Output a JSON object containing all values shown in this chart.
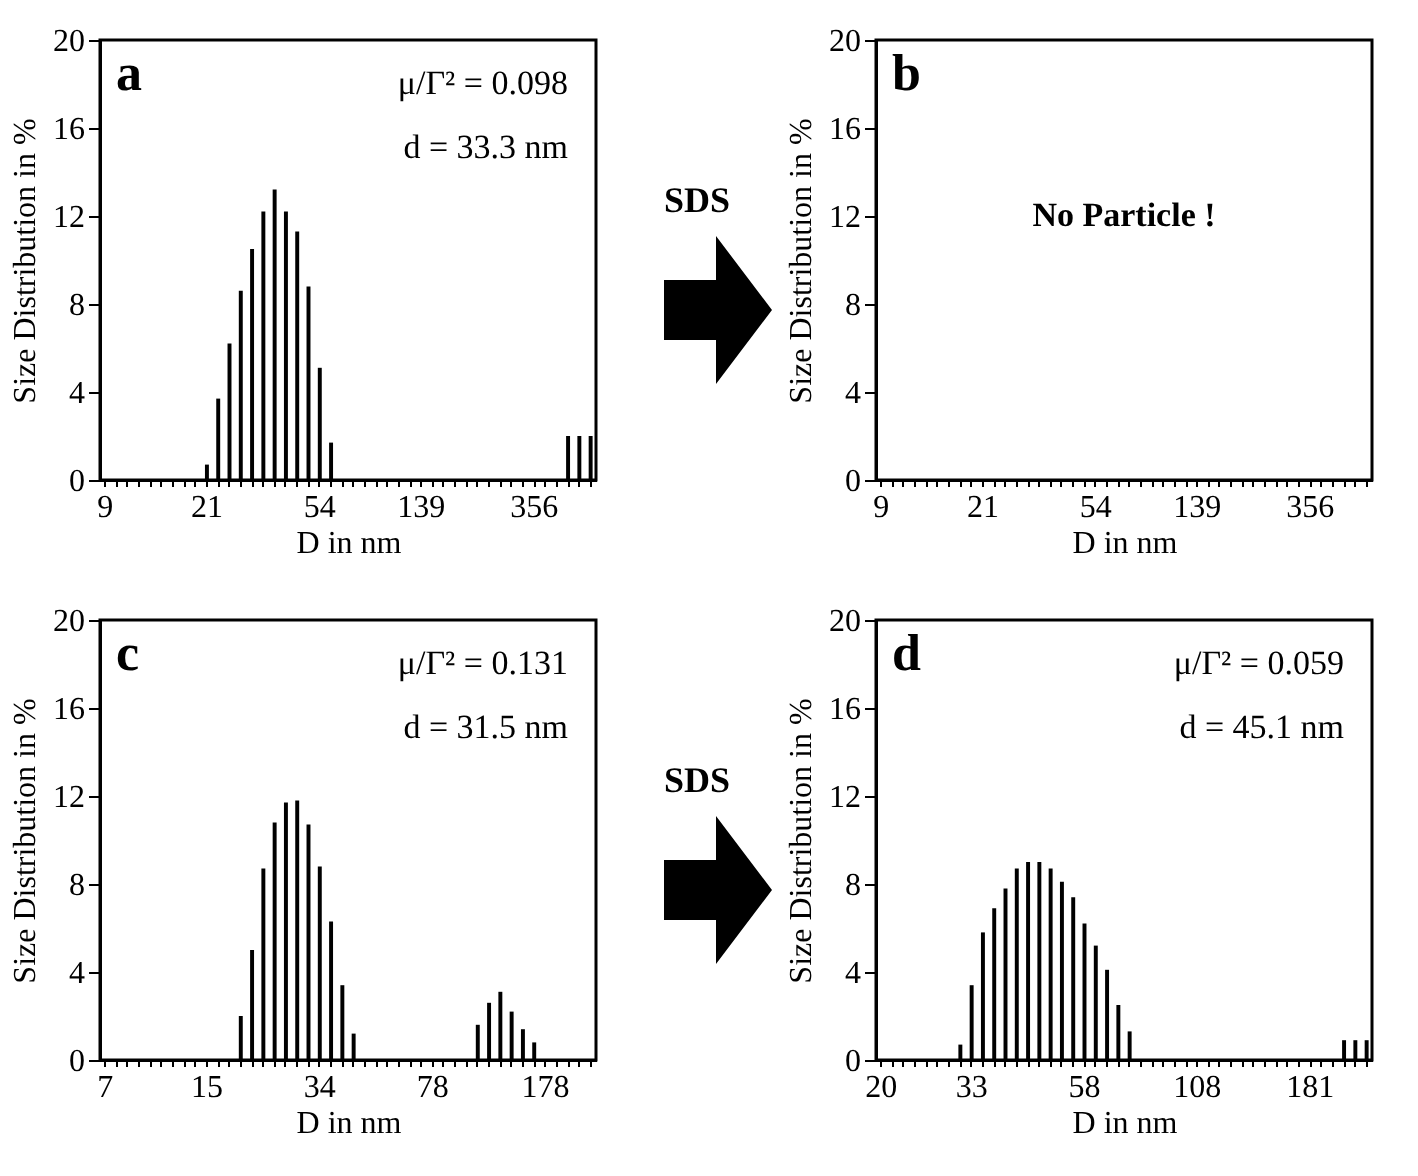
{
  "chart_data": [
    {
      "type": "bar",
      "title": "a",
      "xlabel": "D in nm",
      "ylabel": "Size Distribution in %",
      "annotations": [
        "μ/Γ² = 0.098",
        "d = 33.3 nm"
      ],
      "categories": [
        "9",
        null,
        null,
        null,
        null,
        null,
        null,
        null,
        null,
        "21",
        null,
        null,
        null,
        null,
        null,
        null,
        null,
        null,
        null,
        "54",
        null,
        null,
        null,
        null,
        null,
        null,
        null,
        null,
        "139",
        null,
        null,
        null,
        null,
        null,
        null,
        null,
        null,
        null,
        "356",
        null,
        null,
        null,
        null,
        null
      ],
      "values": [
        0,
        0,
        0,
        0,
        0,
        0,
        0,
        0,
        0,
        0.7,
        3.7,
        6.2,
        8.6,
        10.5,
        12.2,
        13.2,
        12.2,
        11.3,
        8.8,
        5.1,
        1.7,
        0,
        0,
        0,
        0,
        0,
        0,
        0,
        0,
        0,
        0,
        0,
        0,
        0,
        0,
        0,
        0,
        0,
        0,
        0,
        0,
        2.0,
        2.0,
        2.0
      ],
      "color": "#000000",
      "ylim": [
        0,
        20
      ],
      "yticks": [
        0,
        4,
        8,
        12,
        16,
        20
      ],
      "grid": false
    },
    {
      "type": "bar",
      "title": "b",
      "xlabel": "D in nm",
      "ylabel": "Size Distribution in %",
      "annotations": [
        "SDS",
        "No Particle !"
      ],
      "categories": [
        "9",
        null,
        null,
        null,
        null,
        null,
        null,
        null,
        null,
        "21",
        null,
        null,
        null,
        null,
        null,
        null,
        null,
        null,
        null,
        "54",
        null,
        null,
        null,
        null,
        null,
        null,
        null,
        null,
        "139",
        null,
        null,
        null,
        null,
        null,
        null,
        null,
        null,
        null,
        "356",
        null,
        null,
        null,
        null,
        null
      ],
      "values": [
        0,
        0,
        0,
        0,
        0,
        0,
        0,
        0,
        0,
        0,
        0,
        0,
        0,
        0,
        0,
        0,
        0,
        0,
        0,
        0,
        0,
        0,
        0,
        0,
        0,
        0,
        0,
        0,
        0,
        0,
        0,
        0,
        0,
        0,
        0,
        0,
        0,
        0,
        0,
        0,
        0,
        0,
        0,
        0
      ],
      "color": "#000000",
      "ylim": [
        0,
        20
      ],
      "yticks": [
        0,
        4,
        8,
        12,
        16,
        20
      ],
      "grid": false
    },
    {
      "type": "bar",
      "title": "c",
      "xlabel": "D in nm",
      "ylabel": "Size Distribution in %",
      "annotations": [
        "μ/Γ² = 0.131",
        "d = 31.5 nm"
      ],
      "categories": [
        "7",
        null,
        null,
        null,
        null,
        null,
        null,
        null,
        null,
        "15",
        null,
        null,
        null,
        null,
        null,
        null,
        null,
        null,
        null,
        "34",
        null,
        null,
        null,
        null,
        null,
        null,
        null,
        null,
        null,
        "78",
        null,
        null,
        null,
        null,
        null,
        null,
        null,
        null,
        null,
        "178",
        null,
        null,
        null,
        null
      ],
      "values": [
        0,
        0,
        0,
        0,
        0,
        0,
        0,
        0,
        0,
        0,
        0,
        0,
        2.0,
        5.0,
        8.7,
        10.8,
        11.7,
        11.8,
        10.7,
        8.8,
        6.3,
        3.4,
        1.2,
        0,
        0,
        0,
        0,
        0,
        0,
        0,
        0,
        0,
        0,
        1.6,
        2.6,
        3.1,
        2.2,
        1.4,
        0.8,
        0,
        0,
        0,
        0,
        0
      ],
      "color": "#000000",
      "ylim": [
        0,
        20
      ],
      "yticks": [
        0,
        4,
        8,
        12,
        16,
        20
      ],
      "grid": false
    },
    {
      "type": "bar",
      "title": "d",
      "xlabel": "D in nm",
      "ylabel": "Size Distribution in %",
      "annotations": [
        "SDS",
        "μ/Γ² = 0.059",
        "d = 45.1 nm"
      ],
      "categories": [
        "20",
        null,
        null,
        null,
        null,
        null,
        null,
        null,
        "33",
        null,
        null,
        null,
        null,
        null,
        null,
        null,
        null,
        null,
        "58",
        null,
        null,
        null,
        null,
        null,
        null,
        null,
        null,
        null,
        "108",
        null,
        null,
        null,
        null,
        null,
        null,
        null,
        null,
        null,
        "181",
        null,
        null,
        null,
        null,
        null
      ],
      "values": [
        0,
        0,
        0,
        0,
        0,
        0,
        0,
        0.7,
        3.4,
        5.8,
        6.9,
        7.8,
        8.7,
        9.0,
        9.0,
        8.7,
        8.1,
        7.4,
        6.2,
        5.2,
        4.1,
        2.5,
        1.3,
        0,
        0,
        0,
        0,
        0,
        0,
        0,
        0,
        0,
        0,
        0,
        0,
        0,
        0,
        0,
        0,
        0,
        0,
        0.9,
        0.9,
        0.9
      ],
      "color": "#000000",
      "ylim": [
        0,
        20
      ],
      "yticks": [
        0,
        4,
        8,
        12,
        16,
        20
      ],
      "grid": false
    }
  ]
}
